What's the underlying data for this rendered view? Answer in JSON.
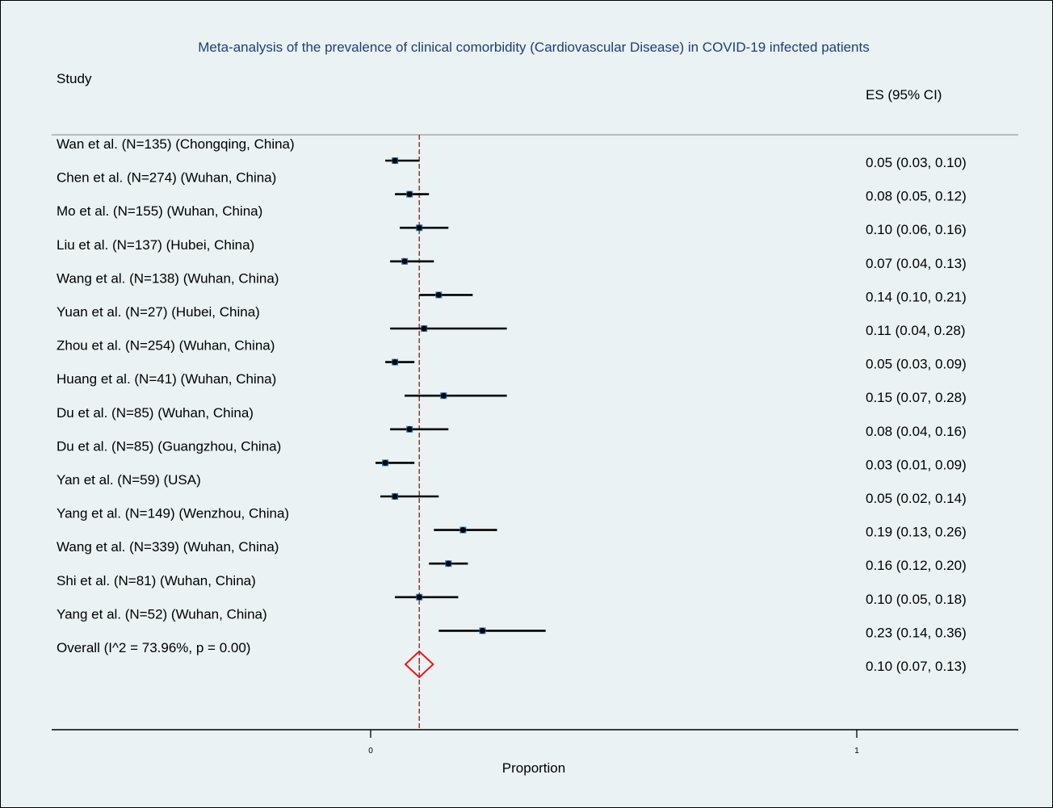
{
  "chart_data": {
    "type": "forest",
    "title": "Meta-analysis of the prevalence of clinical comorbidity (Cardiovascular Disease) in COVID-19 infected patients",
    "study_header": "Study",
    "es_header": "ES (95% CI)",
    "xlabel": "Proportion",
    "xlim": [
      0,
      1
    ],
    "xticks": [
      0,
      1
    ],
    "xtick_labels": [
      "0",
      "1"
    ],
    "reference_line": 0.1,
    "studies": [
      {
        "label": "Wan et al. (N=135) (Chongqing, China)",
        "es": 0.05,
        "lo": 0.03,
        "hi": 0.1,
        "text": "0.05 (0.03, 0.10)"
      },
      {
        "label": "Chen et al. (N=274) (Wuhan, China)",
        "es": 0.08,
        "lo": 0.05,
        "hi": 0.12,
        "text": "0.08 (0.05, 0.12)"
      },
      {
        "label": "Mo et al. (N=155) (Wuhan, China)",
        "es": 0.1,
        "lo": 0.06,
        "hi": 0.16,
        "text": "0.10 (0.06, 0.16)"
      },
      {
        "label": "Liu et al. (N=137) (Hubei, China)",
        "es": 0.07,
        "lo": 0.04,
        "hi": 0.13,
        "text": "0.07 (0.04, 0.13)"
      },
      {
        "label": "Wang et al. (N=138) (Wuhan, China)",
        "es": 0.14,
        "lo": 0.1,
        "hi": 0.21,
        "text": "0.14 (0.10, 0.21)"
      },
      {
        "label": "Yuan et al. (N=27) (Hubei, China)",
        "es": 0.11,
        "lo": 0.04,
        "hi": 0.28,
        "text": "0.11 (0.04, 0.28)"
      },
      {
        "label": "Zhou et al. (N=254) (Wuhan, China)",
        "es": 0.05,
        "lo": 0.03,
        "hi": 0.09,
        "text": "0.05 (0.03, 0.09)"
      },
      {
        "label": "Huang et al. (N=41) (Wuhan, China)",
        "es": 0.15,
        "lo": 0.07,
        "hi": 0.28,
        "text": "0.15 (0.07, 0.28)"
      },
      {
        "label": "Du et al. (N=85) (Wuhan, China)",
        "es": 0.08,
        "lo": 0.04,
        "hi": 0.16,
        "text": "0.08 (0.04, 0.16)"
      },
      {
        "label": "Du et al. (N=85) (Guangzhou, China)",
        "es": 0.03,
        "lo": 0.01,
        "hi": 0.09,
        "text": "0.03 (0.01, 0.09)"
      },
      {
        "label": "Yan et al. (N=59) (USA)",
        "es": 0.05,
        "lo": 0.02,
        "hi": 0.14,
        "text": "0.05 (0.02, 0.14)"
      },
      {
        "label": "Yang et al. (N=149) (Wenzhou, China)",
        "es": 0.19,
        "lo": 0.13,
        "hi": 0.26,
        "text": "0.19 (0.13, 0.26)"
      },
      {
        "label": "Wang et al. (N=339) (Wuhan, China)",
        "es": 0.16,
        "lo": 0.12,
        "hi": 0.2,
        "text": "0.16 (0.12, 0.20)"
      },
      {
        "label": "Shi et al. (N=81) (Wuhan, China)",
        "es": 0.1,
        "lo": 0.05,
        "hi": 0.18,
        "text": "0.10 (0.05, 0.18)"
      },
      {
        "label": "Yang et al. (N=52) (Wuhan, China)",
        "es": 0.23,
        "lo": 0.14,
        "hi": 0.36,
        "text": "0.23 (0.14, 0.36)"
      }
    ],
    "overall": {
      "label": "Overall  (I^2 = 73.96%, p = 0.00)",
      "es": 0.1,
      "lo": 0.07,
      "hi": 0.13,
      "text": "0.10 (0.07, 0.13)"
    },
    "colors": {
      "background": "#eaf2f3",
      "title": "#1f3e78",
      "marker": "#1f77b4",
      "point": "#000000",
      "ci": "#000000",
      "diamond": "#e31a1c",
      "ref_line": "#8b1a1a",
      "header_rule": "#aaaaaa"
    }
  }
}
